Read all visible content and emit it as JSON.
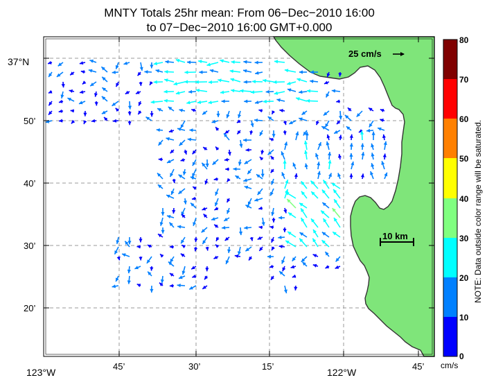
{
  "title": {
    "line1": "MNTY Totals 25hr mean: From 06−Dec−2010 16:00",
    "line2": "to 07−Dec−2010 16:00 GMT+0.000"
  },
  "axes": {
    "x_ticks": [
      {
        "text": "123°W"
      },
      {
        "text": "45’"
      },
      {
        "text": "30’"
      },
      {
        "text": "15’"
      },
      {
        "text": "122°W"
      },
      {
        "text": "45’"
      }
    ],
    "y_ticks": [
      {
        "text": "37°N"
      },
      {
        "text": "50’"
      },
      {
        "text": "40’"
      },
      {
        "text": "30’"
      },
      {
        "text": "20’"
      }
    ]
  },
  "reference_vector": "25 cm/s",
  "scale_bar": "10 km",
  "colorbar": {
    "labels": [
      "80",
      "70",
      "60",
      "50",
      "40",
      "30",
      "20",
      "10",
      "0"
    ],
    "unit": "cm/s",
    "note": "NOTE: Data outside color range will be saturated.",
    "colors": [
      "#800000",
      "#ff0000",
      "#ff8000",
      "#ffff00",
      "#80ff80",
      "#00ffff",
      "#0080ff",
      "#0000ff"
    ]
  },
  "colors": {
    "land": "#7fe57a",
    "coast": "#333333",
    "grid": "#999999"
  }
}
